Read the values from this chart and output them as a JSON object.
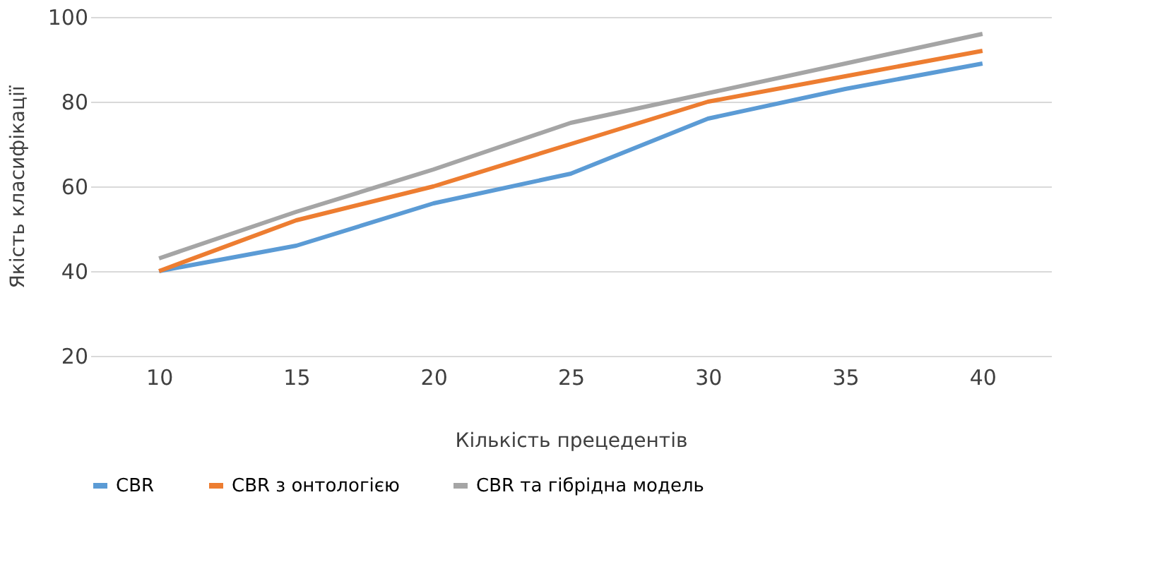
{
  "chart_data": {
    "type": "line",
    "xlabel": "Кількість прецедентів",
    "ylabel": "Якість класифікації",
    "categories": [
      "10",
      "15",
      "20",
      "25",
      "30",
      "35",
      "40"
    ],
    "series": [
      {
        "name": "CBR",
        "color": "#5b9bd5",
        "values": [
          40,
          46,
          56,
          63,
          76,
          83,
          89
        ]
      },
      {
        "name": "CBR з онтологією",
        "color": "#ed7d31",
        "values": [
          40,
          52,
          60,
          70,
          80,
          86,
          92
        ]
      },
      {
        "name": "CBR та гібрідна модель",
        "color": "#a5a5a5",
        "values": [
          43,
          54,
          64,
          75,
          82,
          89,
          96
        ]
      }
    ],
    "ylim": [
      20,
      100
    ],
    "yticks": [
      20,
      40,
      60,
      80,
      100
    ],
    "grid": "y",
    "legend": "bottom",
    "marker": "none",
    "line_style": "solid"
  }
}
